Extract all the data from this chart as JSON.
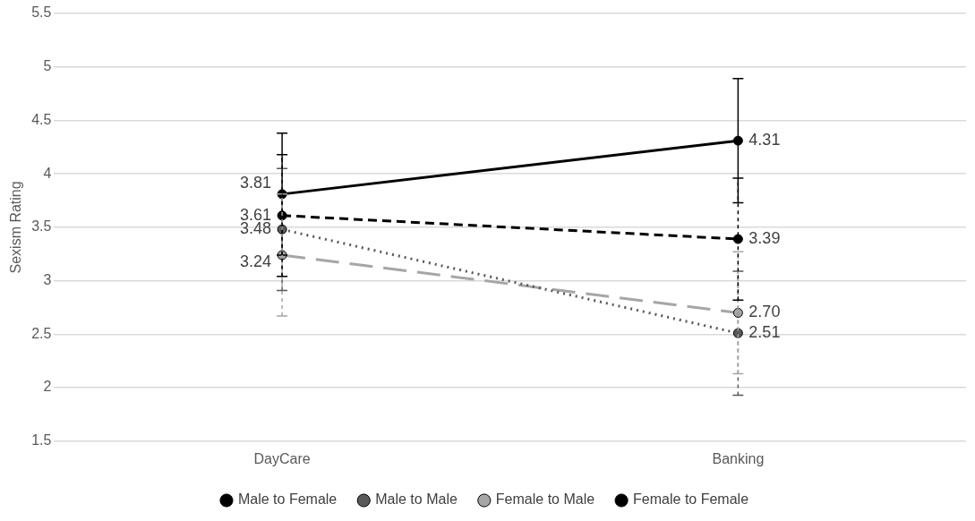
{
  "chart_data": {
    "type": "line",
    "ylabel": "Sexism Rating",
    "categories": [
      "DayCare",
      "Banking"
    ],
    "ylim": [
      1.5,
      5.5
    ],
    "yticks": [
      1.5,
      2,
      2.5,
      3,
      3.5,
      4,
      4.5,
      5,
      5.5
    ],
    "grid": "y",
    "legend": "bottom",
    "marker": "circle",
    "series": [
      {
        "name": "Male to Female",
        "color": "#000000",
        "line_style": "solid",
        "values": [
          3.81,
          4.31
        ],
        "value_labels": [
          "3.81",
          "4.31"
        ],
        "errors": [
          0.57,
          0.58
        ]
      },
      {
        "name": "Male to Male",
        "color": "#595959",
        "line_style": "dotted",
        "values": [
          3.48,
          2.51
        ],
        "value_labels": [
          "3.48",
          "2.51"
        ],
        "errors": [
          0.57,
          0.58
        ]
      },
      {
        "name": "Female to Male",
        "color": "#a6a6a6",
        "line_style": "dashed",
        "values": [
          3.24,
          2.7
        ],
        "value_labels": [
          "3.24",
          "2.70"
        ],
        "errors": [
          0.57,
          0.57
        ]
      },
      {
        "name": "Female to Female",
        "color": "#000000",
        "line_style": "dashed",
        "values": [
          3.61,
          3.39
        ],
        "value_labels": [
          "3.61",
          "3.39"
        ],
        "errors": [
          0.57,
          0.57
        ]
      }
    ]
  }
}
